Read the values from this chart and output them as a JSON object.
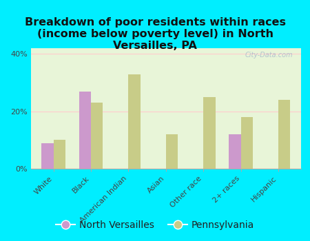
{
  "title": "Breakdown of poor residents within races\n(income below poverty level) in North\nVersailles, PA",
  "categories": [
    "White",
    "Black",
    "American Indian",
    "Asian",
    "Other race",
    "2+ races",
    "Hispanic"
  ],
  "north_versailles": [
    9,
    27,
    0,
    0,
    0,
    12,
    0
  ],
  "pennsylvania": [
    10,
    23,
    33,
    12,
    25,
    18,
    24
  ],
  "nv_color": "#cc99cc",
  "pa_color": "#c8cc88",
  "bg_color": "#00eeff",
  "plot_bg": "#e8f5d8",
  "ylim": [
    0,
    42
  ],
  "yticks": [
    0,
    20,
    40
  ],
  "ytick_labels": [
    "0%",
    "20%",
    "40%"
  ],
  "watermark": "City-Data.com",
  "legend_labels": [
    "North Versailles",
    "Pennsylvania"
  ],
  "title_fontsize": 11.5,
  "tick_fontsize": 8,
  "legend_fontsize": 10
}
